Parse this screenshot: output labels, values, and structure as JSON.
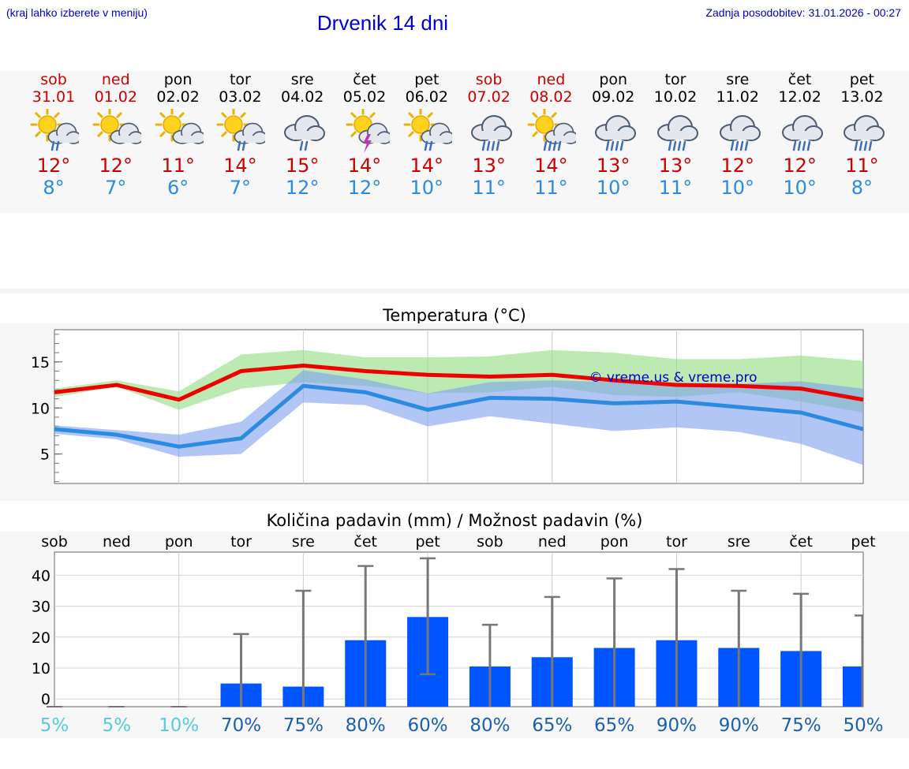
{
  "header": {
    "hint": "(kraj lahko izberete v meniju)",
    "title": "Drvenik 14 dni",
    "updated": "Zadnja posodobitev: 31.01.2026 - 00:27",
    "watermark": "© vreme.us & vreme.pro"
  },
  "colors": {
    "weekend": "#cc0000",
    "weekday": "#000000",
    "max": "#ee0000",
    "min": "#2a8be0",
    "bar": "#0055ff",
    "prob_low": "#55ccdd",
    "prob_high": "#1a60b0"
  },
  "days": [
    {
      "name": "sob",
      "date": "31.01",
      "weekend": true,
      "icon": "sun-cloud-drizzle-icon",
      "max": "12°",
      "min": "8°"
    },
    {
      "name": "ned",
      "date": "01.02",
      "weekend": true,
      "icon": "sun-cloud-icon",
      "max": "12°",
      "min": "7°"
    },
    {
      "name": "pon",
      "date": "02.02",
      "weekend": false,
      "icon": "sun-cloud-icon",
      "max": "11°",
      "min": "6°"
    },
    {
      "name": "tor",
      "date": "03.02",
      "weekend": false,
      "icon": "sun-cloud-drizzle-icon",
      "max": "14°",
      "min": "7°"
    },
    {
      "name": "sre",
      "date": "04.02",
      "weekend": false,
      "icon": "cloud-drizzle-icon",
      "max": "15°",
      "min": "12°"
    },
    {
      "name": "čet",
      "date": "05.02",
      "weekend": false,
      "icon": "sun-thunder-icon",
      "max": "14°",
      "min": "12°"
    },
    {
      "name": "pet",
      "date": "06.02",
      "weekend": false,
      "icon": "sun-cloud-drizzle-icon",
      "max": "14°",
      "min": "10°"
    },
    {
      "name": "sob",
      "date": "07.02",
      "weekend": true,
      "icon": "cloud-rain-icon",
      "max": "13°",
      "min": "11°"
    },
    {
      "name": "ned",
      "date": "08.02",
      "weekend": true,
      "icon": "sun-cloud-rain-icon",
      "max": "14°",
      "min": "11°"
    },
    {
      "name": "pon",
      "date": "09.02",
      "weekend": false,
      "icon": "cloud-rain-icon",
      "max": "13°",
      "min": "10°"
    },
    {
      "name": "tor",
      "date": "10.02",
      "weekend": false,
      "icon": "cloud-rain-icon",
      "max": "13°",
      "min": "11°"
    },
    {
      "name": "sre",
      "date": "11.02",
      "weekend": false,
      "icon": "cloud-rain-icon",
      "max": "12°",
      "min": "10°"
    },
    {
      "name": "čet",
      "date": "12.02",
      "weekend": false,
      "icon": "cloud-rain-icon",
      "max": "12°",
      "min": "10°"
    },
    {
      "name": "pet",
      "date": "13.02",
      "weekend": false,
      "icon": "cloud-rain-icon",
      "max": "11°",
      "min": "8°"
    }
  ],
  "chart_data": [
    {
      "type": "line",
      "title": "Temperatura (°C)",
      "xlabel": "",
      "ylabel": "",
      "ylim": [
        1.8,
        18.5
      ],
      "yticks": [
        5,
        10,
        15
      ],
      "x": [
        0,
        1,
        2,
        3,
        4,
        5,
        6,
        7,
        8,
        9,
        10,
        11,
        12,
        13
      ],
      "series": [
        {
          "name": "max",
          "values": [
            11.7,
            12.5,
            10.9,
            14.0,
            14.6,
            14.0,
            13.6,
            13.4,
            13.6,
            13.0,
            12.5,
            12.4,
            12.1,
            10.9
          ],
          "band_low": [
            11.2,
            12.3,
            9.8,
            12.1,
            12.8,
            12.4,
            11.6,
            11.7,
            12.3,
            11.4,
            11.2,
            11.7,
            10.7,
            9.5
          ],
          "band_high": [
            12.1,
            13.0,
            11.8,
            15.8,
            16.3,
            15.5,
            15.5,
            15.6,
            16.3,
            16.0,
            15.3,
            15.3,
            15.7,
            15.1
          ]
        },
        {
          "name": "min",
          "values": [
            7.7,
            7.1,
            5.8,
            6.7,
            12.4,
            11.7,
            9.8,
            11.1,
            11.0,
            10.5,
            10.7,
            10.1,
            9.5,
            7.7
          ],
          "band_low": [
            7.2,
            6.6,
            4.7,
            5.0,
            10.6,
            10.3,
            8.0,
            9.1,
            8.3,
            7.5,
            7.9,
            7.4,
            6.1,
            3.8
          ],
          "band_high": [
            8.1,
            7.6,
            7.1,
            8.5,
            14.1,
            13.1,
            11.6,
            12.8,
            13.0,
            12.8,
            12.7,
            12.6,
            12.9,
            12.1
          ]
        }
      ]
    },
    {
      "type": "bar",
      "title": "Količina padavin (mm) / Možnost padavin (%)",
      "xlabel": "",
      "ylabel": "",
      "ylim": [
        -2.5,
        47.5
      ],
      "yticks": [
        0,
        10,
        20,
        30,
        40
      ],
      "categories": [
        "sob",
        "ned",
        "pon",
        "tor",
        "sre",
        "čet",
        "pet",
        "sob",
        "ned",
        "pon",
        "tor",
        "sre",
        "čet",
        "pet"
      ],
      "values": [
        0,
        0,
        0,
        5,
        4,
        19,
        26.5,
        10.5,
        13.5,
        16.5,
        19,
        16.5,
        15.5,
        10.5
      ],
      "error_low": [
        0,
        0,
        0,
        0,
        0,
        0,
        8,
        0,
        0,
        0,
        0,
        0,
        0,
        0
      ],
      "error_high": [
        0,
        0,
        0,
        21,
        35,
        43,
        45.5,
        24,
        33,
        39,
        42,
        35,
        34,
        27
      ],
      "probability": [
        "5%",
        "5%",
        "10%",
        "70%",
        "75%",
        "80%",
        "60%",
        "80%",
        "65%",
        "65%",
        "90%",
        "90%",
        "75%",
        "50%"
      ]
    }
  ]
}
